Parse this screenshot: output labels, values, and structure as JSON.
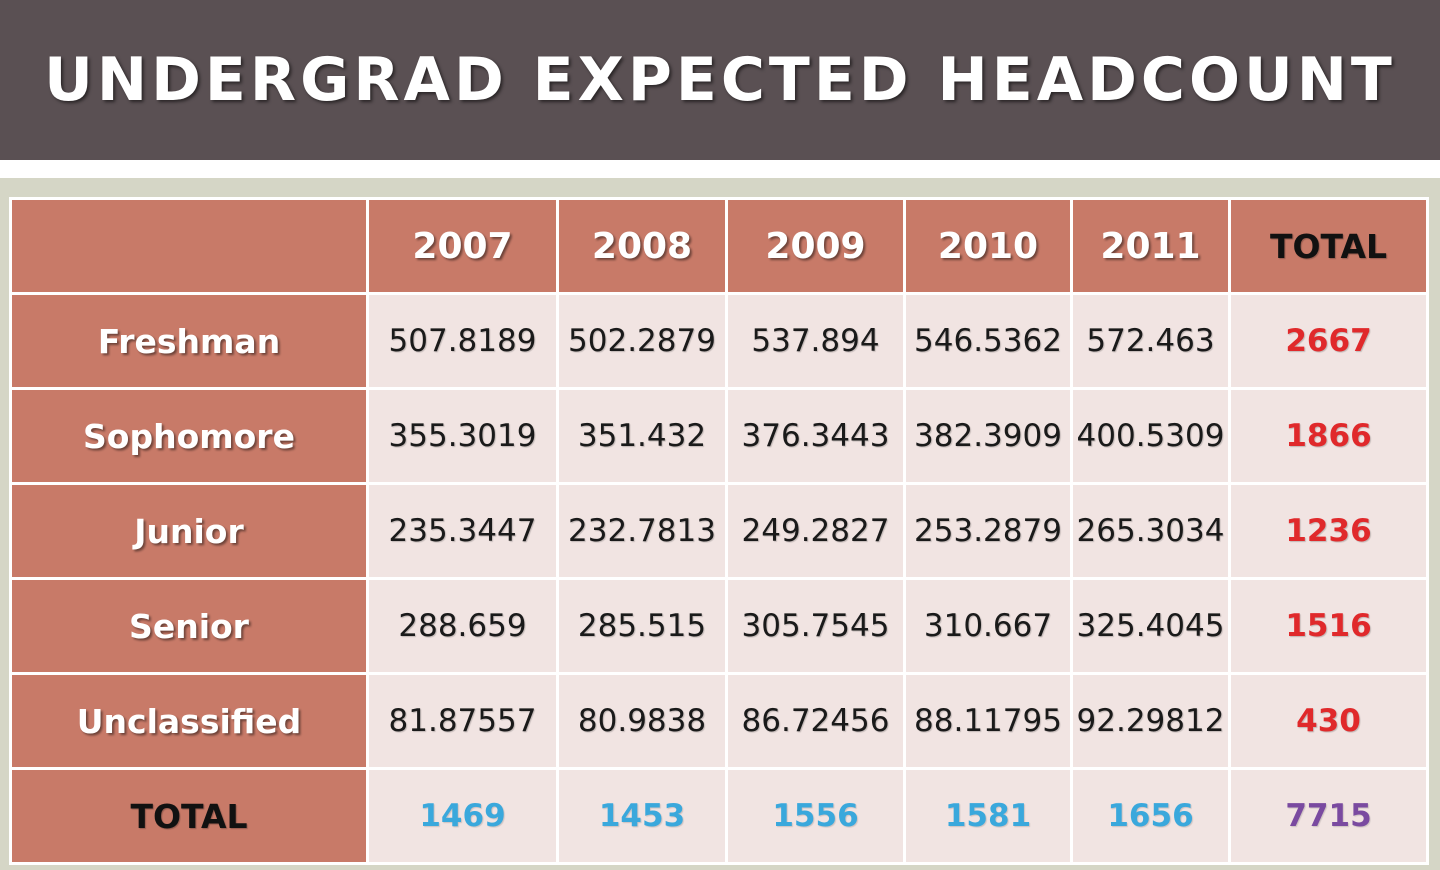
{
  "title": "UNDERGRAD EXPECTED HEADCOUNT",
  "colors": {
    "title_bar": "#5a5053",
    "header_cell": "#c87a68",
    "data_cell": "#f1e4e2",
    "row_total_text": "#e0292b",
    "column_total_text": "#3aa8dc",
    "grand_total_text": "#7a4aa0"
  },
  "table": {
    "columns": [
      "2007",
      "2008",
      "2009",
      "2010",
      "2011",
      "TOTAL"
    ],
    "rows": [
      {
        "label": "Freshman",
        "values": [
          "507.8189",
          "502.2879",
          "537.894",
          "546.5362",
          "572.463"
        ],
        "total": "2667"
      },
      {
        "label": "Sophomore",
        "values": [
          "355.3019",
          "351.432",
          "376.3443",
          "382.3909",
          "400.5309"
        ],
        "total": "1866"
      },
      {
        "label": "Junior",
        "values": [
          "235.3447",
          "232.7813",
          "249.2827",
          "253.2879",
          "265.3034"
        ],
        "total": "1236"
      },
      {
        "label": "Senior",
        "values": [
          "288.659",
          "285.515",
          "305.7545",
          "310.667",
          "325.4045"
        ],
        "total": "1516"
      },
      {
        "label": "Unclassified",
        "values": [
          "81.87557",
          "80.9838",
          "86.72456",
          "88.11795",
          "92.29812"
        ],
        "total": "430"
      }
    ],
    "total_row": {
      "label": "TOTAL",
      "values": [
        "1469",
        "1453",
        "1556",
        "1581",
        "1656"
      ],
      "grand_total": "7715"
    }
  }
}
